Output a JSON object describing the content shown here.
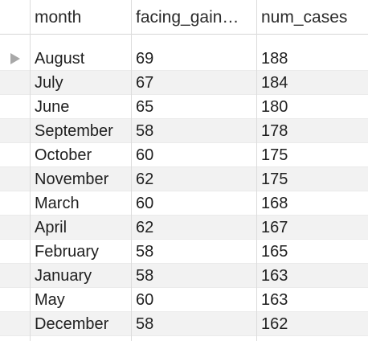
{
  "columns": {
    "month": "month",
    "facing_gain": "facing_gain…",
    "num_cases": "num_cases"
  },
  "rows": [
    {
      "month": "August",
      "facing_gain": "69",
      "num_cases": "188"
    },
    {
      "month": "July",
      "facing_gain": "67",
      "num_cases": "184"
    },
    {
      "month": "June",
      "facing_gain": "65",
      "num_cases": "180"
    },
    {
      "month": "September",
      "facing_gain": "58",
      "num_cases": "178"
    },
    {
      "month": "October",
      "facing_gain": "60",
      "num_cases": "175"
    },
    {
      "month": "November",
      "facing_gain": "62",
      "num_cases": "175"
    },
    {
      "month": "March",
      "facing_gain": "60",
      "num_cases": "168"
    },
    {
      "month": "April",
      "facing_gain": "62",
      "num_cases": "167"
    },
    {
      "month": "February",
      "facing_gain": "58",
      "num_cases": "165"
    },
    {
      "month": "January",
      "facing_gain": "58",
      "num_cases": "163"
    },
    {
      "month": "May",
      "facing_gain": "60",
      "num_cases": "163"
    },
    {
      "month": "December",
      "facing_gain": "58",
      "num_cases": "162"
    }
  ],
  "current_row_indicator": "row-pointer-icon",
  "colors": {
    "alt_row": "#f2f2f2",
    "grid_line": "#dcdcdc",
    "indicator": "#a8a8a8"
  }
}
